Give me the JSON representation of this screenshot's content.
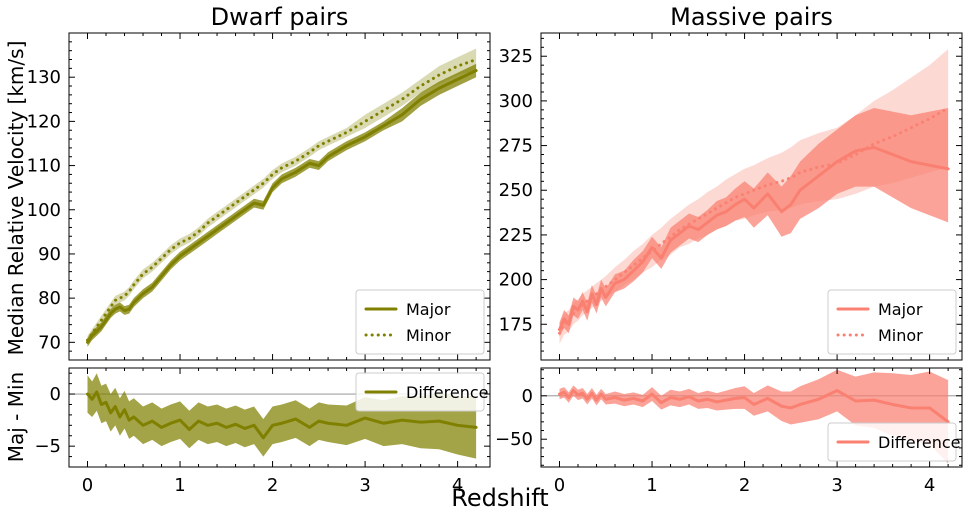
{
  "figure": {
    "shared_xlabel": "Redshift",
    "ylabel_top": "Median Relative Velocity [km/s]",
    "ylabel_bottom": "Maj - Min"
  },
  "colors": {
    "dwarf": "#808000",
    "massive": "#fa8072"
  },
  "chart_data": [
    {
      "id": "dwarf_top",
      "type": "line",
      "title": "Dwarf pairs",
      "xlabel": "",
      "ylabel": "Median Relative Velocity [km/s]",
      "xlim": [
        -0.2,
        4.35
      ],
      "ylim": [
        66,
        140
      ],
      "xticks": [
        0,
        1,
        2,
        3,
        4
      ],
      "yticks": [
        70,
        80,
        90,
        100,
        110,
        120,
        130
      ],
      "legend": "bottom-right",
      "x": [
        0.0,
        0.05,
        0.1,
        0.15,
        0.2,
        0.25,
        0.3,
        0.35,
        0.4,
        0.45,
        0.5,
        0.6,
        0.7,
        0.8,
        0.9,
        1.0,
        1.1,
        1.2,
        1.3,
        1.4,
        1.5,
        1.6,
        1.7,
        1.8,
        1.9,
        2.0,
        2.1,
        2.25,
        2.4,
        2.5,
        2.6,
        2.8,
        3.0,
        3.2,
        3.4,
        3.6,
        3.8,
        4.0,
        4.2
      ],
      "series": [
        {
          "name": "Major",
          "style": "solid",
          "values": [
            70.0,
            71.5,
            72.5,
            73.5,
            75.0,
            76.5,
            77.5,
            78.0,
            77.2,
            77.5,
            79.0,
            81.0,
            82.5,
            85.0,
            87.5,
            89.5,
            91.0,
            92.5,
            94.0,
            95.5,
            97.0,
            98.5,
            100.0,
            101.5,
            101.0,
            105.0,
            107.0,
            108.5,
            110.5,
            110.0,
            112.0,
            114.5,
            116.5,
            119.0,
            121.5,
            125.0,
            127.5,
            129.5,
            131.5
          ],
          "band_low": [
            69.0,
            70.5,
            71.5,
            72.5,
            74.0,
            75.5,
            76.5,
            77.0,
            76.2,
            76.5,
            78.0,
            80.0,
            81.5,
            84.0,
            86.5,
            88.5,
            90.0,
            91.5,
            93.0,
            94.5,
            96.0,
            97.5,
            99.0,
            100.5,
            100.0,
            104.0,
            106.0,
            107.5,
            109.5,
            109.0,
            111.0,
            113.5,
            115.5,
            118.0,
            120.0,
            123.5,
            126.0,
            128.0,
            130.0
          ],
          "band_high": [
            71.0,
            72.5,
            73.5,
            74.5,
            76.0,
            77.5,
            78.5,
            79.0,
            78.2,
            78.5,
            80.0,
            82.0,
            83.5,
            86.0,
            88.5,
            90.5,
            92.0,
            93.5,
            95.0,
            96.5,
            98.0,
            99.5,
            101.0,
            102.5,
            102.0,
            106.0,
            108.0,
            109.5,
            111.5,
            111.0,
            113.0,
            115.5,
            117.5,
            120.0,
            123.0,
            126.5,
            129.0,
            131.0,
            133.0
          ]
        },
        {
          "name": "Minor",
          "style": "dotted",
          "values": [
            70.5,
            72.0,
            73.5,
            75.0,
            76.5,
            78.0,
            79.5,
            80.0,
            80.5,
            81.5,
            83.0,
            85.5,
            87.0,
            89.0,
            91.0,
            92.5,
            93.5,
            95.0,
            97.0,
            98.5,
            100.0,
            101.5,
            103.0,
            104.5,
            106.0,
            108.0,
            109.5,
            111.0,
            113.0,
            114.5,
            115.5,
            117.5,
            120.0,
            122.5,
            125.0,
            128.0,
            130.5,
            132.5,
            134.0
          ],
          "band_low": [
            69.5,
            71.0,
            72.5,
            74.0,
            75.5,
            77.0,
            78.5,
            79.0,
            79.5,
            80.5,
            82.0,
            84.5,
            86.0,
            88.0,
            90.0,
            91.5,
            92.5,
            94.0,
            96.0,
            97.5,
            99.0,
            100.5,
            102.0,
            103.5,
            105.0,
            107.0,
            108.5,
            110.0,
            112.0,
            113.5,
            114.5,
            116.5,
            118.5,
            121.0,
            123.5,
            126.5,
            128.5,
            130.5,
            131.5
          ],
          "band_high": [
            71.5,
            73.0,
            74.5,
            76.0,
            77.5,
            79.0,
            80.5,
            81.0,
            81.5,
            82.5,
            84.0,
            86.5,
            88.0,
            90.0,
            92.0,
            93.5,
            94.5,
            96.0,
            98.0,
            99.5,
            101.0,
            102.5,
            104.0,
            105.5,
            107.0,
            109.0,
            110.5,
            112.0,
            114.0,
            115.5,
            116.5,
            118.5,
            121.5,
            124.0,
            126.5,
            129.5,
            132.5,
            134.5,
            136.5
          ]
        }
      ]
    },
    {
      "id": "massive_top",
      "type": "line",
      "title": "Massive pairs",
      "xlabel": "",
      "ylabel": "",
      "xlim": [
        -0.2,
        4.35
      ],
      "ylim": [
        155,
        338
      ],
      "xticks": [
        0,
        1,
        2,
        3,
        4
      ],
      "yticks": [
        175,
        200,
        225,
        250,
        275,
        300,
        325
      ],
      "legend": "bottom-right",
      "x": [
        0.0,
        0.05,
        0.1,
        0.15,
        0.2,
        0.25,
        0.3,
        0.35,
        0.4,
        0.45,
        0.5,
        0.6,
        0.7,
        0.8,
        0.9,
        1.0,
        1.1,
        1.2,
        1.3,
        1.4,
        1.5,
        1.6,
        1.7,
        1.8,
        1.9,
        2.0,
        2.1,
        2.25,
        2.4,
        2.5,
        2.6,
        2.8,
        3.0,
        3.2,
        3.4,
        3.6,
        3.8,
        4.0,
        4.2
      ],
      "series": [
        {
          "name": "Major",
          "style": "solid",
          "values": [
            172,
            178,
            175,
            185,
            183,
            188,
            182,
            192,
            186,
            195,
            190,
            198,
            200,
            205,
            210,
            218,
            212,
            222,
            226,
            230,
            228,
            232,
            236,
            238,
            242,
            245,
            240,
            248,
            238,
            242,
            250,
            258,
            266,
            272,
            274,
            270,
            266,
            264,
            262
          ],
          "band_low": [
            168,
            173,
            170,
            180,
            178,
            183,
            177,
            187,
            181,
            190,
            185,
            193,
            195,
            199,
            204,
            212,
            206,
            215,
            219,
            223,
            221,
            225,
            228,
            230,
            233,
            235,
            229,
            236,
            224,
            226,
            234,
            240,
            248,
            252,
            252,
            246,
            240,
            236,
            232
          ],
          "band_high": [
            176,
            183,
            180,
            190,
            188,
            193,
            187,
            197,
            191,
            200,
            195,
            203,
            205,
            211,
            216,
            224,
            218,
            229,
            233,
            237,
            235,
            239,
            244,
            246,
            251,
            255,
            251,
            260,
            252,
            258,
            266,
            276,
            284,
            292,
            296,
            294,
            292,
            294,
            296
          ]
        },
        {
          "name": "Minor",
          "style": "dotted",
          "values": [
            170,
            175,
            177,
            181,
            183,
            186,
            188,
            190,
            192,
            194,
            196,
            200,
            204,
            208,
            212,
            216,
            220,
            224,
            228,
            231,
            234,
            237,
            240,
            243,
            246,
            248,
            250,
            253,
            255,
            257,
            260,
            263,
            265,
            270,
            276,
            280,
            285,
            290,
            296
          ],
          "band_low": [
            164,
            169,
            171,
            175,
            177,
            180,
            182,
            184,
            186,
            188,
            190,
            193,
            197,
            200,
            204,
            207,
            211,
            214,
            218,
            220,
            223,
            225,
            228,
            230,
            233,
            234,
            236,
            238,
            239,
            240,
            242,
            244,
            245,
            248,
            252,
            254,
            257,
            260,
            263
          ],
          "band_high": [
            176,
            181,
            183,
            187,
            189,
            192,
            194,
            196,
            198,
            200,
            202,
            207,
            211,
            216,
            220,
            225,
            229,
            234,
            238,
            242,
            245,
            249,
            252,
            256,
            259,
            262,
            264,
            268,
            271,
            274,
            278,
            282,
            285,
            292,
            300,
            306,
            313,
            320,
            329
          ]
        }
      ]
    },
    {
      "id": "dwarf_bottom",
      "type": "line",
      "title": "",
      "xlabel": "",
      "ylabel": "Maj - Min",
      "xlim": [
        -0.2,
        4.35
      ],
      "ylim": [
        -7,
        2.5
      ],
      "xticks": [
        0,
        1,
        2,
        3,
        4
      ],
      "yticks": [
        -5,
        0
      ],
      "reference_line": 0,
      "legend": "top-right",
      "x": [
        0.0,
        0.05,
        0.1,
        0.15,
        0.2,
        0.25,
        0.3,
        0.35,
        0.4,
        0.45,
        0.5,
        0.6,
        0.7,
        0.8,
        0.9,
        1.0,
        1.1,
        1.2,
        1.3,
        1.4,
        1.5,
        1.6,
        1.7,
        1.8,
        1.9,
        2.0,
        2.1,
        2.25,
        2.4,
        2.5,
        2.6,
        2.8,
        3.0,
        3.2,
        3.4,
        3.6,
        3.8,
        4.0,
        4.2
      ],
      "series": [
        {
          "name": "Difference",
          "style": "solid",
          "values": [
            0.0,
            -0.5,
            0.2,
            -1.0,
            -0.8,
            -1.8,
            -1.2,
            -2.2,
            -1.5,
            -2.5,
            -2.2,
            -3.0,
            -2.6,
            -3.2,
            -2.8,
            -2.5,
            -3.4,
            -2.6,
            -3.0,
            -2.8,
            -3.2,
            -2.9,
            -3.3,
            -3.0,
            -4.2,
            -3.0,
            -2.8,
            -2.4,
            -3.2,
            -2.6,
            -2.8,
            -3.0,
            -2.3,
            -2.8,
            -2.5,
            -2.7,
            -2.6,
            -3.0,
            -3.2
          ],
          "band_low": [
            -1.8,
            -2.2,
            -1.6,
            -2.8,
            -2.6,
            -3.6,
            -3.0,
            -4.0,
            -3.3,
            -4.3,
            -4.0,
            -4.8,
            -4.4,
            -5.0,
            -4.6,
            -4.3,
            -5.2,
            -4.4,
            -4.8,
            -4.6,
            -5.0,
            -4.7,
            -5.1,
            -4.8,
            -6.0,
            -4.8,
            -4.6,
            -4.2,
            -5.0,
            -4.4,
            -4.6,
            -4.9,
            -4.3,
            -5.0,
            -4.8,
            -5.2,
            -5.3,
            -5.8,
            -6.2
          ],
          "band_high": [
            1.8,
            1.2,
            2.0,
            0.8,
            1.0,
            0.0,
            0.6,
            -0.4,
            0.3,
            -0.7,
            -0.4,
            -1.2,
            -0.8,
            -1.4,
            -1.0,
            -0.7,
            -1.6,
            -0.8,
            -1.2,
            -1.0,
            -1.4,
            -1.1,
            -1.5,
            -1.2,
            -2.4,
            -1.2,
            -1.0,
            -0.6,
            -1.4,
            -0.8,
            -1.0,
            -1.1,
            -0.3,
            -0.6,
            -0.2,
            -0.2,
            0.1,
            -0.2,
            -0.2
          ]
        }
      ]
    },
    {
      "id": "massive_bottom",
      "type": "line",
      "title": "",
      "xlabel": "",
      "ylabel": "",
      "xlim": [
        -0.2,
        4.35
      ],
      "ylim": [
        -82,
        32
      ],
      "xticks": [
        0,
        1,
        2,
        3,
        4
      ],
      "yticks": [
        -50,
        0
      ],
      "reference_line": 0,
      "legend": "bottom-right",
      "x": [
        0.0,
        0.05,
        0.1,
        0.15,
        0.2,
        0.25,
        0.3,
        0.35,
        0.4,
        0.45,
        0.5,
        0.6,
        0.7,
        0.8,
        0.9,
        1.0,
        1.1,
        1.2,
        1.3,
        1.4,
        1.5,
        1.6,
        1.7,
        1.8,
        1.9,
        2.0,
        2.1,
        2.25,
        2.4,
        2.5,
        2.6,
        2.8,
        3.0,
        3.2,
        3.4,
        3.6,
        3.8,
        4.0,
        4.2
      ],
      "series": [
        {
          "name": "Difference",
          "style": "solid",
          "values": [
            2,
            4,
            -2,
            6,
            1,
            3,
            -4,
            3,
            -5,
            2,
            -4,
            -2,
            -5,
            -3,
            -6,
            2,
            -8,
            -2,
            -4,
            -1,
            -6,
            -4,
            -7,
            -5,
            -3,
            -2,
            -10,
            -3,
            -12,
            -14,
            -10,
            -4,
            6,
            -6,
            -5,
            -10,
            -14,
            -14,
            -30
          ],
          "band_low": [
            -4,
            -2,
            -8,
            0,
            -5,
            -3,
            -10,
            -3,
            -11,
            -4,
            -10,
            -9,
            -12,
            -10,
            -13,
            -6,
            -16,
            -11,
            -13,
            -10,
            -15,
            -14,
            -17,
            -16,
            -15,
            -15,
            -23,
            -18,
            -29,
            -33,
            -31,
            -27,
            -18,
            -34,
            -37,
            -46,
            -52,
            -56,
            -78
          ],
          "band_high": [
            8,
            10,
            4,
            12,
            7,
            9,
            2,
            9,
            1,
            8,
            2,
            5,
            2,
            4,
            1,
            10,
            0,
            7,
            5,
            8,
            3,
            6,
            3,
            6,
            9,
            11,
            3,
            12,
            5,
            5,
            11,
            19,
            30,
            22,
            27,
            26,
            24,
            28,
            18
          ]
        }
      ]
    }
  ]
}
